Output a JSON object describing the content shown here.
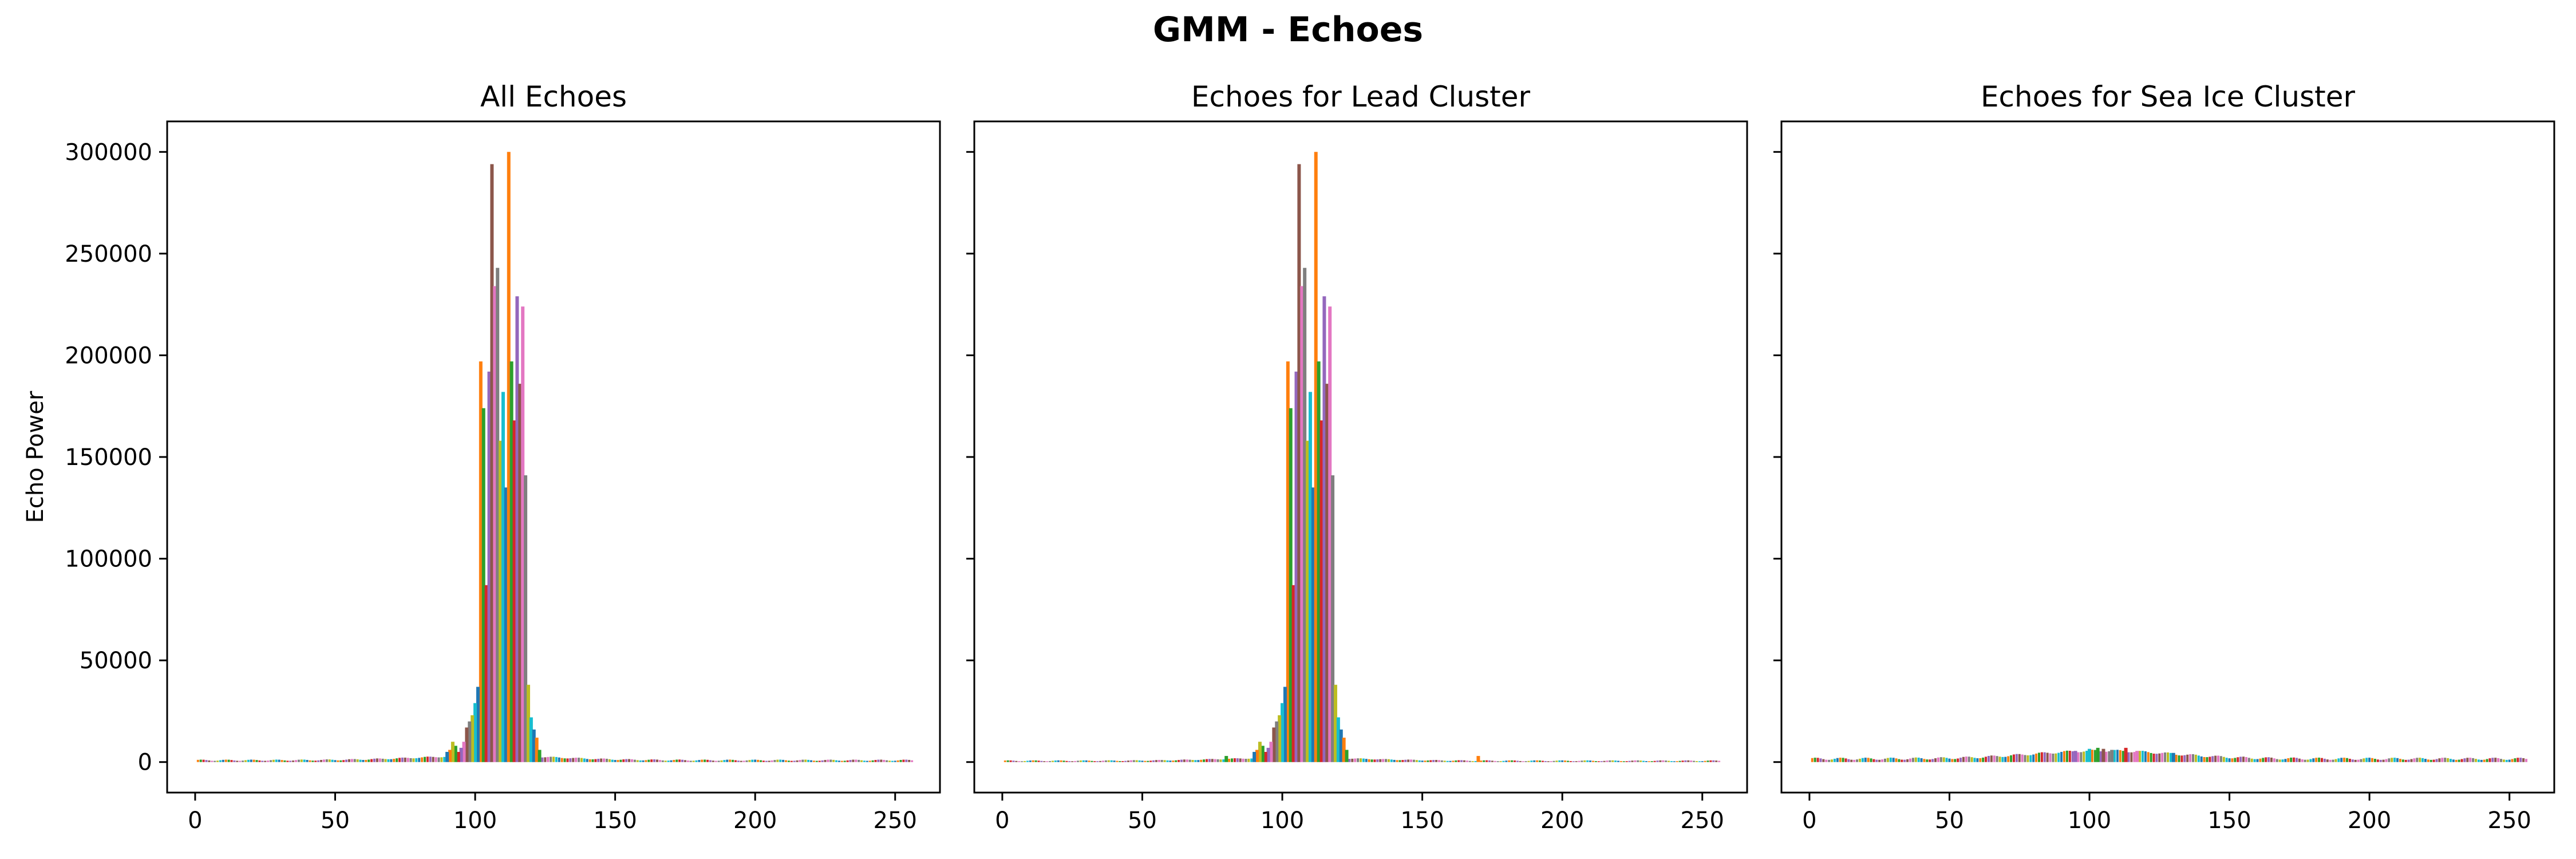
{
  "figure": {
    "suptitle": "GMM - Echoes"
  },
  "chart_data": [
    {
      "type": "line",
      "title": "All Echoes",
      "xlabel": "",
      "ylabel": "Echo Power",
      "xlim": [
        -10,
        266
      ],
      "ylim": [
        -15000,
        315000
      ],
      "x_ticks": [
        0,
        50,
        100,
        150,
        200,
        250
      ],
      "y_ticks": [
        0,
        50000,
        100000,
        150000,
        200000,
        250000,
        300000
      ],
      "shared_y": true,
      "grid": false,
      "legend": "none",
      "peaks": [
        {
          "x": 102,
          "y": 197000,
          "color": "#ff7f0e"
        },
        {
          "x": 103,
          "y": 174000,
          "color": "#2ca02c"
        },
        {
          "x": 104,
          "y": 87000,
          "color": "#d62728"
        },
        {
          "x": 105,
          "y": 192000,
          "color": "#9467bd"
        },
        {
          "x": 106,
          "y": 294000,
          "color": "#8c564b"
        },
        {
          "x": 107,
          "y": 234000,
          "color": "#e377c2"
        },
        {
          "x": 108,
          "y": 243000,
          "color": "#7f7f7f"
        },
        {
          "x": 109,
          "y": 158000,
          "color": "#bcbd22"
        },
        {
          "x": 110,
          "y": 182000,
          "color": "#17becf"
        },
        {
          "x": 111,
          "y": 135000,
          "color": "#1f77b4"
        },
        {
          "x": 112,
          "y": 300000,
          "color": "#ff7f0e"
        },
        {
          "x": 113,
          "y": 197000,
          "color": "#2ca02c"
        },
        {
          "x": 114,
          "y": 168000,
          "color": "#d62728"
        },
        {
          "x": 115,
          "y": 229000,
          "color": "#9467bd"
        },
        {
          "x": 116,
          "y": 186000,
          "color": "#8c564b"
        },
        {
          "x": 117,
          "y": 224000,
          "color": "#e377c2"
        },
        {
          "x": 118,
          "y": 141000,
          "color": "#7f7f7f"
        },
        {
          "x": 119,
          "y": 38000,
          "color": "#bcbd22"
        },
        {
          "x": 120,
          "y": 22000,
          "color": "#17becf"
        },
        {
          "x": 121,
          "y": 16000,
          "color": "#1f77b4"
        },
        {
          "x": 122,
          "y": 12000,
          "color": "#ff7f0e"
        },
        {
          "x": 123,
          "y": 6000,
          "color": "#2ca02c"
        },
        {
          "x": 101,
          "y": 37000,
          "color": "#1f77b4"
        },
        {
          "x": 100,
          "y": 29000,
          "color": "#17becf"
        },
        {
          "x": 99,
          "y": 23000,
          "color": "#bcbd22"
        },
        {
          "x": 98,
          "y": 20000,
          "color": "#7f7f7f"
        },
        {
          "x": 97,
          "y": 17000,
          "color": "#8c564b"
        },
        {
          "x": 96,
          "y": 10000,
          "color": "#e377c2"
        },
        {
          "x": 95,
          "y": 7000,
          "color": "#9467bd"
        },
        {
          "x": 94,
          "y": 5000,
          "color": "#d62728"
        },
        {
          "x": 93,
          "y": 8000,
          "color": "#2ca02c"
        },
        {
          "x": 92,
          "y": 10000,
          "color": "#bcbd22"
        },
        {
          "x": 91,
          "y": 6000,
          "color": "#ff7f0e"
        },
        {
          "x": 90,
          "y": 5000,
          "color": "#1f77b4"
        }
      ],
      "baseline_level": 1000
    },
    {
      "type": "line",
      "title": "Echoes for Lead Cluster",
      "xlabel": "",
      "ylabel": "",
      "xlim": [
        -10,
        266
      ],
      "ylim": [
        -15000,
        315000
      ],
      "x_ticks": [
        0,
        50,
        100,
        150,
        200,
        250
      ],
      "y_ticks": [
        0,
        50000,
        100000,
        150000,
        200000,
        250000,
        300000
      ],
      "shared_y": true,
      "grid": false,
      "legend": "none",
      "peaks": [
        {
          "x": 102,
          "y": 197000,
          "color": "#ff7f0e"
        },
        {
          "x": 103,
          "y": 174000,
          "color": "#2ca02c"
        },
        {
          "x": 104,
          "y": 87000,
          "color": "#d62728"
        },
        {
          "x": 105,
          "y": 192000,
          "color": "#9467bd"
        },
        {
          "x": 106,
          "y": 294000,
          "color": "#8c564b"
        },
        {
          "x": 107,
          "y": 234000,
          "color": "#e377c2"
        },
        {
          "x": 108,
          "y": 243000,
          "color": "#7f7f7f"
        },
        {
          "x": 109,
          "y": 158000,
          "color": "#bcbd22"
        },
        {
          "x": 110,
          "y": 182000,
          "color": "#17becf"
        },
        {
          "x": 111,
          "y": 135000,
          "color": "#1f77b4"
        },
        {
          "x": 112,
          "y": 300000,
          "color": "#ff7f0e"
        },
        {
          "x": 113,
          "y": 197000,
          "color": "#2ca02c"
        },
        {
          "x": 114,
          "y": 168000,
          "color": "#d62728"
        },
        {
          "x": 115,
          "y": 229000,
          "color": "#9467bd"
        },
        {
          "x": 116,
          "y": 186000,
          "color": "#8c564b"
        },
        {
          "x": 117,
          "y": 224000,
          "color": "#e377c2"
        },
        {
          "x": 118,
          "y": 141000,
          "color": "#7f7f7f"
        },
        {
          "x": 119,
          "y": 38000,
          "color": "#bcbd22"
        },
        {
          "x": 120,
          "y": 22000,
          "color": "#17becf"
        },
        {
          "x": 121,
          "y": 16000,
          "color": "#1f77b4"
        },
        {
          "x": 122,
          "y": 12000,
          "color": "#ff7f0e"
        },
        {
          "x": 123,
          "y": 6000,
          "color": "#2ca02c"
        },
        {
          "x": 101,
          "y": 37000,
          "color": "#1f77b4"
        },
        {
          "x": 100,
          "y": 29000,
          "color": "#17becf"
        },
        {
          "x": 99,
          "y": 23000,
          "color": "#bcbd22"
        },
        {
          "x": 98,
          "y": 20000,
          "color": "#7f7f7f"
        },
        {
          "x": 97,
          "y": 17000,
          "color": "#8c564b"
        },
        {
          "x": 96,
          "y": 10000,
          "color": "#e377c2"
        },
        {
          "x": 95,
          "y": 7000,
          "color": "#9467bd"
        },
        {
          "x": 94,
          "y": 5000,
          "color": "#d62728"
        },
        {
          "x": 93,
          "y": 8000,
          "color": "#2ca02c"
        },
        {
          "x": 92,
          "y": 10000,
          "color": "#bcbd22"
        },
        {
          "x": 91,
          "y": 6000,
          "color": "#ff7f0e"
        },
        {
          "x": 90,
          "y": 5000,
          "color": "#1f77b4"
        },
        {
          "x": 80,
          "y": 3000,
          "color": "#2ca02c"
        },
        {
          "x": 170,
          "y": 3000,
          "color": "#ff7f0e"
        }
      ],
      "baseline_level": 700
    },
    {
      "type": "line",
      "title": "Echoes for Sea Ice Cluster",
      "xlabel": "",
      "ylabel": "",
      "xlim": [
        -10,
        266
      ],
      "ylim": [
        -15000,
        315000
      ],
      "x_ticks": [
        0,
        50,
        100,
        150,
        200,
        250
      ],
      "y_ticks": [
        0,
        50000,
        100000,
        150000,
        200000,
        250000,
        300000
      ],
      "shared_y": true,
      "grid": false,
      "legend": "none",
      "peaks": [
        {
          "x": 95,
          "y": 5500,
          "color": "#9467bd"
        },
        {
          "x": 100,
          "y": 6500,
          "color": "#17becf"
        },
        {
          "x": 103,
          "y": 7000,
          "color": "#2ca02c"
        },
        {
          "x": 105,
          "y": 6500,
          "color": "#8c564b"
        },
        {
          "x": 108,
          "y": 6000,
          "color": "#7f7f7f"
        },
        {
          "x": 113,
          "y": 7000,
          "color": "#d62728"
        },
        {
          "x": 117,
          "y": 5500,
          "color": "#e377c2"
        },
        {
          "x": 130,
          "y": 4500,
          "color": "#1f77b4"
        }
      ],
      "baseline_level": 1800
    }
  ]
}
